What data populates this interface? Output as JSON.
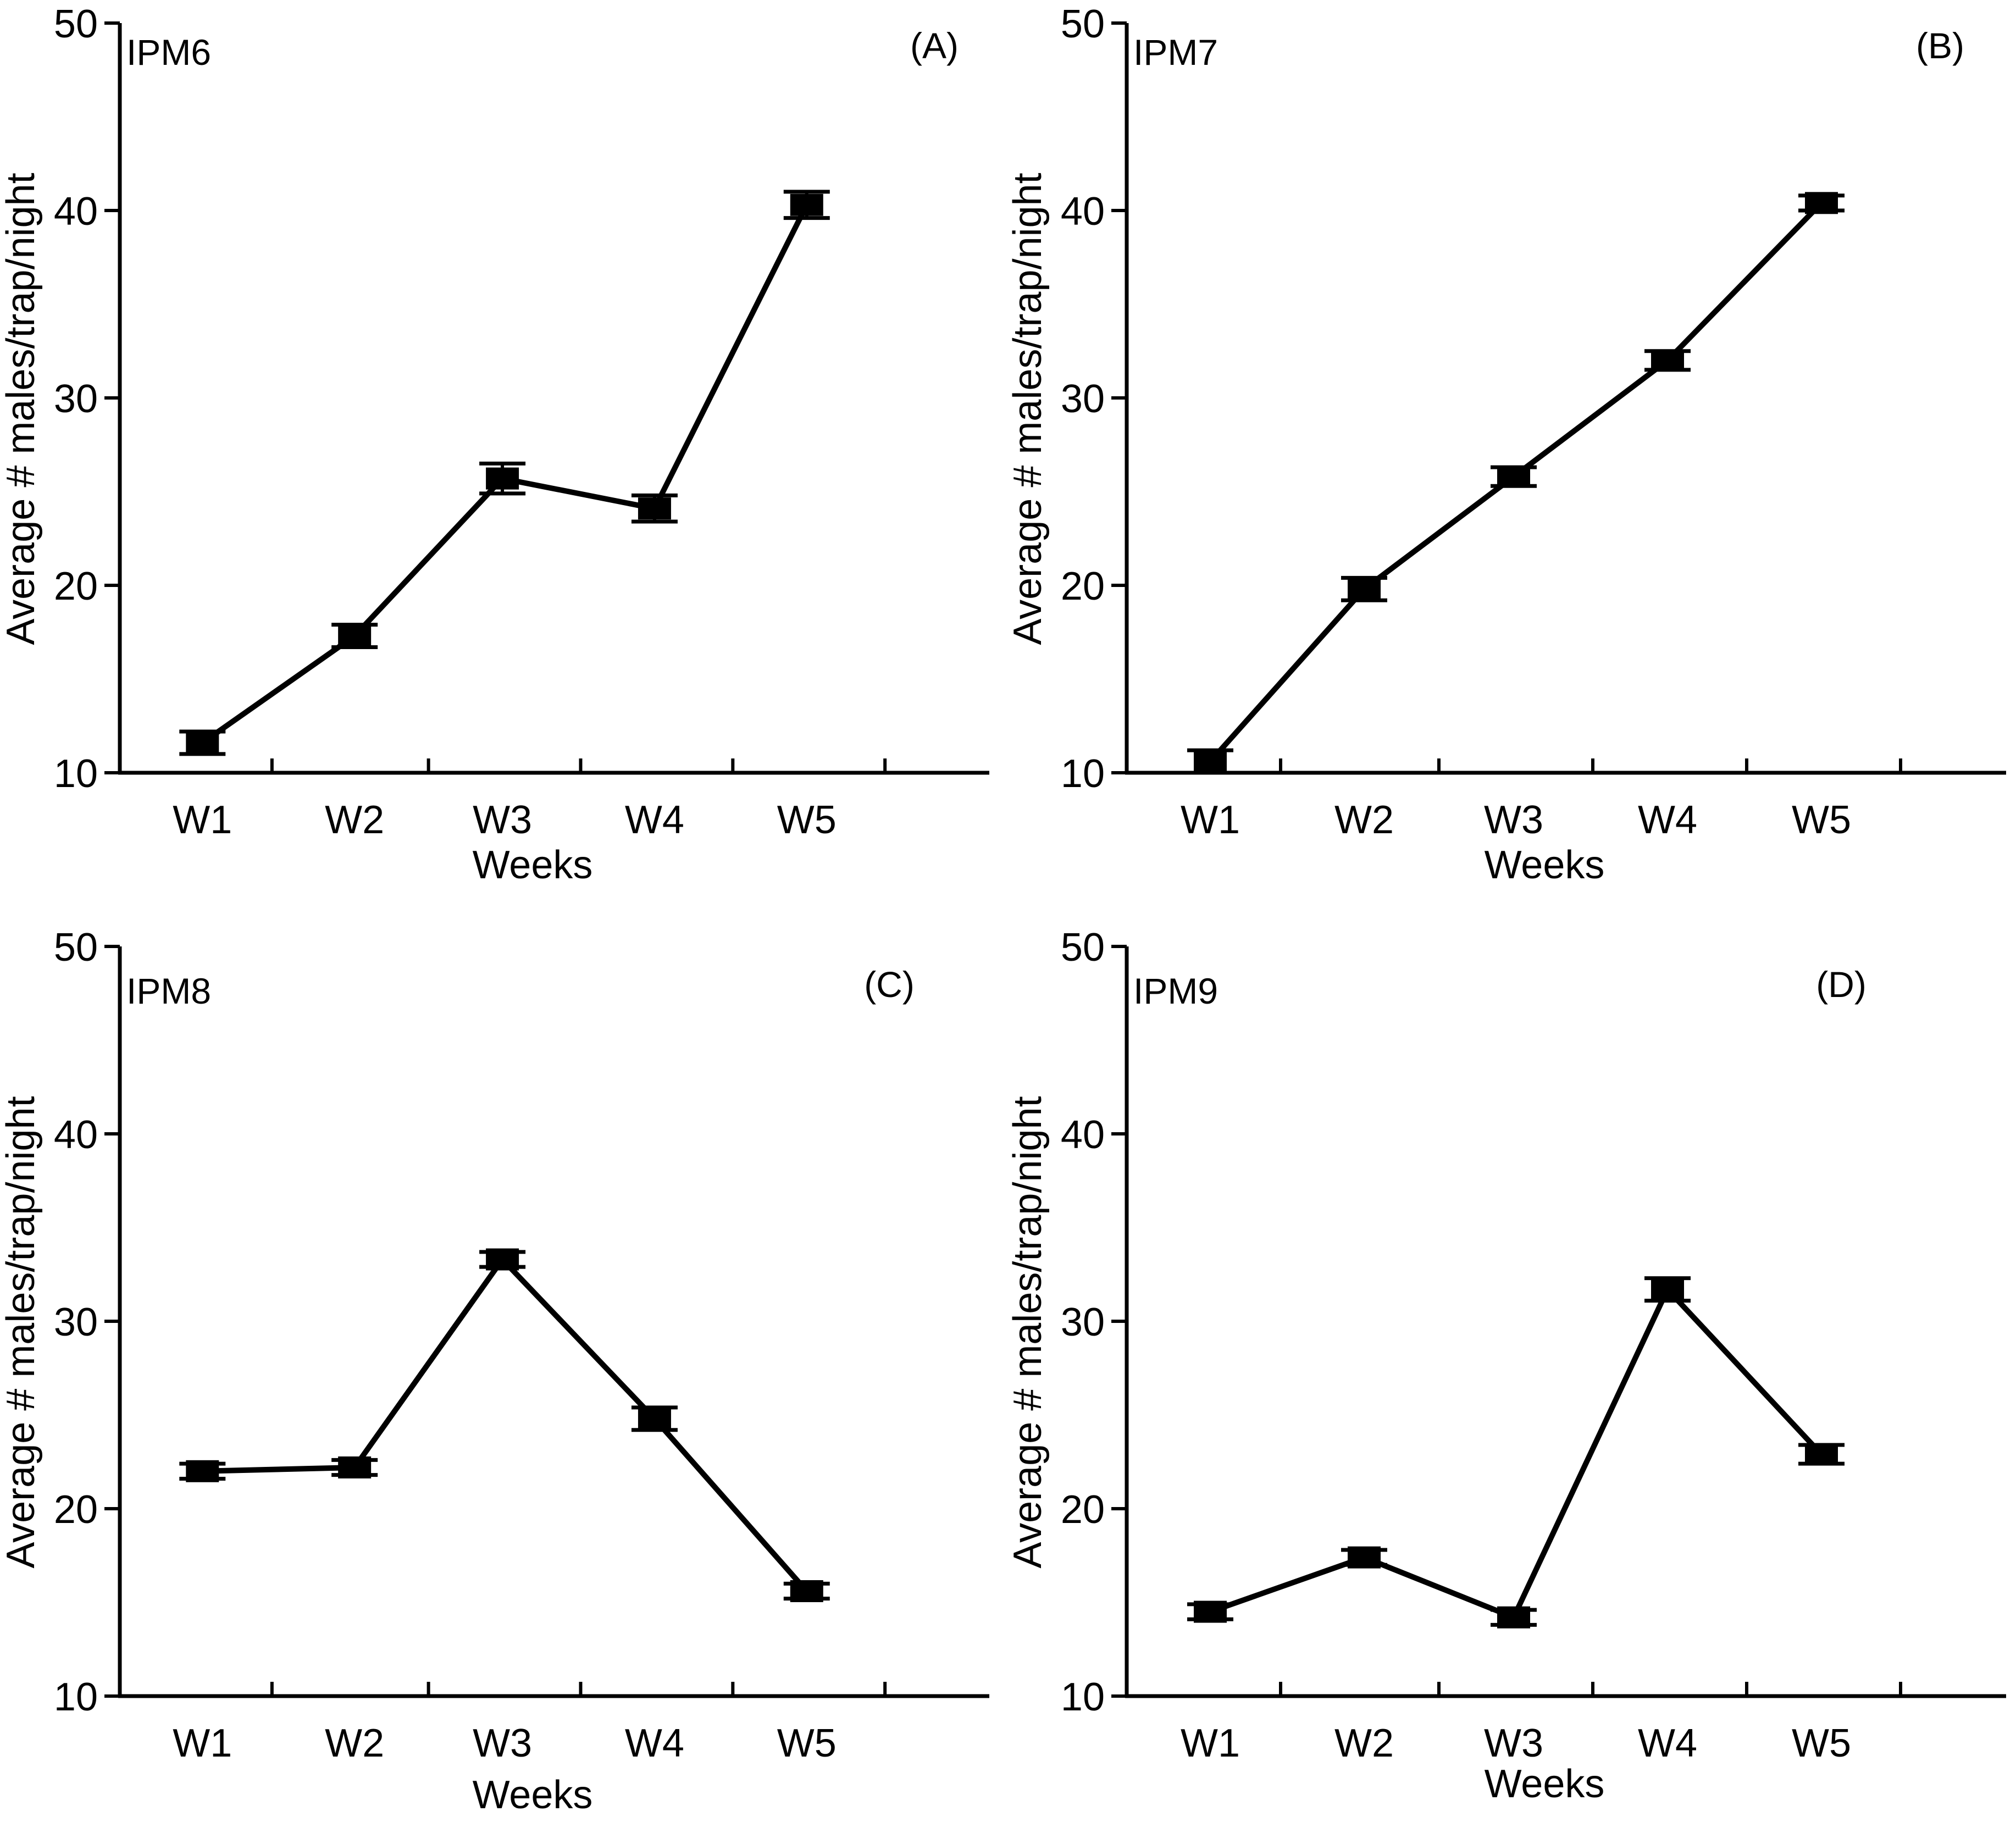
{
  "colors": {
    "line": "#000000",
    "background": "#ffffff"
  },
  "chart_data": [
    {
      "type": "line",
      "panel_label": "(A)",
      "title": "IPM6",
      "xlabel": "Weeks",
      "ylabel": "Average # males/trap/night",
      "categories": [
        "W1",
        "W2",
        "W3",
        "W4",
        "W5"
      ],
      "values": [
        11.6,
        17.3,
        25.7,
        24.1,
        40.3
      ],
      "errors": [
        0.6,
        0.6,
        0.8,
        0.7,
        0.7
      ],
      "ylim": [
        10,
        50
      ],
      "yticks": [
        10,
        20,
        30,
        40,
        50
      ]
    },
    {
      "type": "line",
      "panel_label": "(B)",
      "title": "IPM7",
      "xlabel": "Weeks",
      "ylabel": "Average # males/trap/night",
      "categories": [
        "W1",
        "W2",
        "W3",
        "W4",
        "W5"
      ],
      "values": [
        10.6,
        19.8,
        25.8,
        32.0,
        40.4
      ],
      "errors": [
        0.6,
        0.6,
        0.5,
        0.5,
        0.4
      ],
      "ylim": [
        10,
        50
      ],
      "yticks": [
        10,
        20,
        30,
        40,
        50
      ]
    },
    {
      "type": "line",
      "panel_label": "(C)",
      "title": "IPM8",
      "xlabel": "Weeks",
      "ylabel": "Average # males/trap/night",
      "categories": [
        "W1",
        "W2",
        "W3",
        "W4",
        "W5"
      ],
      "values": [
        22.0,
        22.2,
        33.3,
        24.8,
        15.6
      ],
      "errors": [
        0.4,
        0.4,
        0.4,
        0.6,
        0.4
      ],
      "ylim": [
        10,
        50
      ],
      "yticks": [
        10,
        20,
        30,
        40,
        50
      ]
    },
    {
      "type": "line",
      "panel_label": "(D)",
      "title": "IPM9",
      "xlabel": "Weeks",
      "ylabel": "Average # males/trap/night",
      "categories": [
        "W1",
        "W2",
        "W3",
        "W4",
        "W5"
      ],
      "values": [
        14.5,
        17.4,
        14.2,
        31.7,
        22.9
      ],
      "errors": [
        0.4,
        0.4,
        0.4,
        0.6,
        0.5
      ],
      "ylim": [
        10,
        50
      ],
      "yticks": [
        10,
        20,
        30,
        40,
        50
      ]
    }
  ]
}
